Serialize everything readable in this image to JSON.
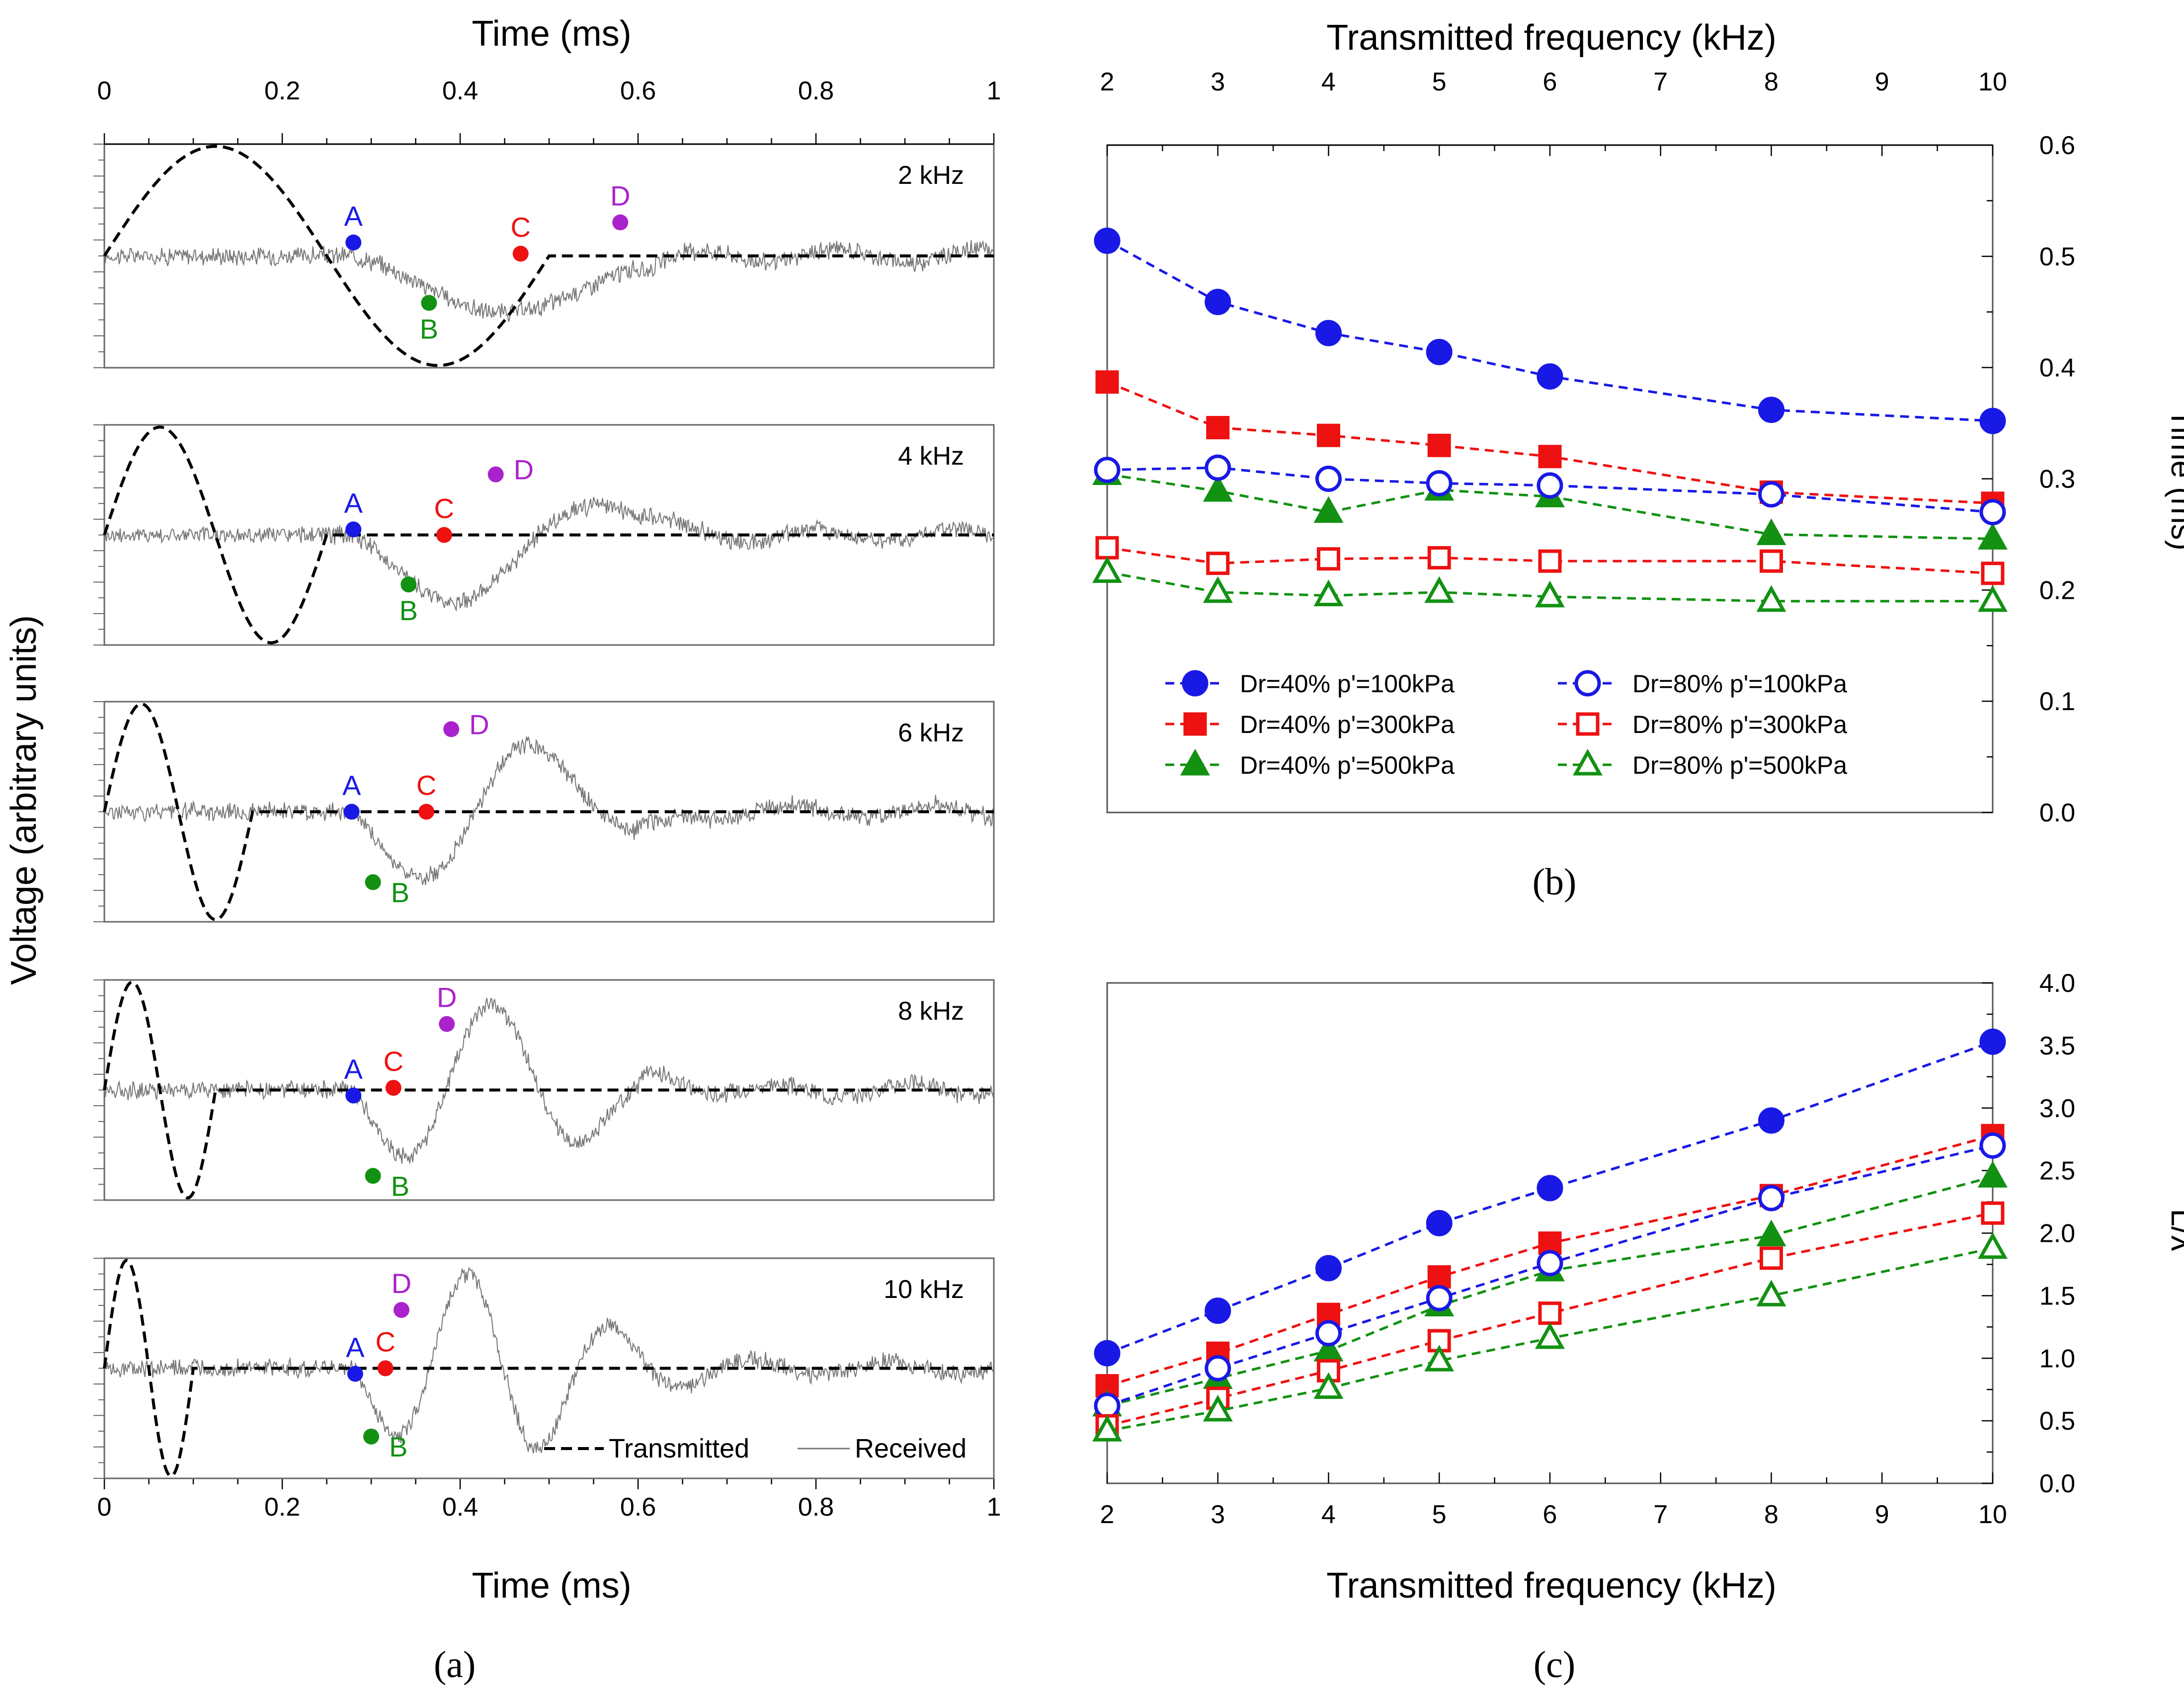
{
  "colors": {
    "blue": "#1919e6",
    "red": "#ee1111",
    "green": "#129112",
    "purple": "#aa22cc",
    "axis": "#555555",
    "text": "#000000"
  },
  "panel_labels": [
    "(a)",
    "(b)",
    "(c)"
  ],
  "chart_data": [
    {
      "id": "a",
      "type": "line",
      "title": "(a)",
      "xlabel": "Time (ms)",
      "xlabel_top": "Time (ms)",
      "ylabel": "Voltage (arbitrary units)",
      "xlim": [
        0,
        1
      ],
      "xticks": [
        "0",
        "0.2",
        "0.4",
        "0.6",
        "0.8",
        "1"
      ],
      "legend": [
        "Transmitted",
        "Received"
      ],
      "subplots": [
        {
          "label": "2 kHz",
          "freq": 2,
          "points": [
            {
              "name": "A",
              "t": 0.28,
              "v": 0.12,
              "color": "blue"
            },
            {
              "name": "B",
              "t": 0.365,
              "v": -0.42,
              "color": "green"
            },
            {
              "name": "C",
              "t": 0.468,
              "v": 0.02,
              "color": "red"
            },
            {
              "name": "D",
              "t": 0.58,
              "v": 0.3,
              "color": "purple"
            }
          ]
        },
        {
          "label": "4 kHz",
          "freq": 4,
          "points": [
            {
              "name": "A",
              "t": 0.28,
              "v": 0.05,
              "color": "blue"
            },
            {
              "name": "B",
              "t": 0.342,
              "v": -0.45,
              "color": "green"
            },
            {
              "name": "C",
              "t": 0.382,
              "v": 0.0,
              "color": "red"
            },
            {
              "name": "D",
              "t": 0.44,
              "v": 0.55,
              "color": "purple"
            }
          ]
        },
        {
          "label": "6 kHz",
          "freq": 6,
          "points": [
            {
              "name": "A",
              "t": 0.278,
              "v": 0.0,
              "color": "blue"
            },
            {
              "name": "B",
              "t": 0.302,
              "v": -0.64,
              "color": "green"
            },
            {
              "name": "C",
              "t": 0.362,
              "v": 0.0,
              "color": "red"
            },
            {
              "name": "D",
              "t": 0.39,
              "v": 0.75,
              "color": "purple"
            }
          ]
        },
        {
          "label": "8 kHz",
          "freq": 8,
          "points": [
            {
              "name": "A",
              "t": 0.28,
              "v": -0.05,
              "color": "blue"
            },
            {
              "name": "B",
              "t": 0.302,
              "v": -0.78,
              "color": "green"
            },
            {
              "name": "C",
              "t": 0.325,
              "v": 0.02,
              "color": "red"
            },
            {
              "name": "D",
              "t": 0.385,
              "v": 0.6,
              "color": "purple"
            }
          ]
        },
        {
          "label": "10 kHz",
          "freq": 10,
          "points": [
            {
              "name": "A",
              "t": 0.282,
              "v": -0.05,
              "color": "blue"
            },
            {
              "name": "B",
              "t": 0.3,
              "v": -0.62,
              "color": "green"
            },
            {
              "name": "C",
              "t": 0.316,
              "v": 0.0,
              "color": "red"
            },
            {
              "name": "D",
              "t": 0.334,
              "v": 0.53,
              "color": "purple"
            }
          ]
        }
      ]
    },
    {
      "id": "b",
      "type": "line",
      "title": "(b)",
      "xlabel": "Transmitted frequency (kHz)",
      "ylabel": "Time (ms)",
      "x": [
        2,
        3,
        4,
        5,
        6,
        8,
        10
      ],
      "xlim": [
        2,
        10
      ],
      "xticks": [
        "2",
        "3",
        "4",
        "5",
        "6",
        "7",
        "8",
        "9",
        "10"
      ],
      "ylim": [
        0,
        0.6
      ],
      "yticks": [
        "0.0",
        "0.1",
        "0.2",
        "0.3",
        "0.4",
        "0.5",
        "0.6"
      ],
      "series": [
        {
          "name": "Dr=40% p'=100kPa",
          "color": "blue",
          "marker": "circle",
          "filled": true,
          "values": [
            0.514,
            0.459,
            0.431,
            0.414,
            0.392,
            0.362,
            0.352
          ]
        },
        {
          "name": "Dr=40% p'=300kPa",
          "color": "red",
          "marker": "square",
          "filled": true,
          "values": [
            0.387,
            0.346,
            0.339,
            0.33,
            0.32,
            0.288,
            0.278
          ]
        },
        {
          "name": "Dr=40% p'=500kPa",
          "color": "green",
          "marker": "triangle",
          "filled": true,
          "values": [
            0.304,
            0.289,
            0.27,
            0.29,
            0.284,
            0.25,
            0.246
          ]
        },
        {
          "name": "Dr=80% p'=100kPa",
          "color": "blue",
          "marker": "circle",
          "filled": false,
          "values": [
            0.308,
            0.31,
            0.3,
            0.296,
            0.294,
            0.286,
            0.27
          ]
        },
        {
          "name": "Dr=80% p'=300kPa",
          "color": "red",
          "marker": "square",
          "filled": false,
          "values": [
            0.238,
            0.224,
            0.228,
            0.229,
            0.226,
            0.226,
            0.215
          ]
        },
        {
          "name": "Dr=80% p'=500kPa",
          "color": "green",
          "marker": "triangle",
          "filled": false,
          "values": [
            0.216,
            0.198,
            0.195,
            0.198,
            0.194,
            0.19,
            0.19
          ]
        }
      ]
    },
    {
      "id": "c",
      "type": "line",
      "title": "(c)",
      "xlabel": "Transmitted frequency (kHz)",
      "ylabel": "L/λ",
      "x": [
        2,
        3,
        4,
        5,
        6,
        8,
        10
      ],
      "xlim": [
        2,
        10
      ],
      "xticks": [
        "2",
        "3",
        "4",
        "5",
        "6",
        "7",
        "8",
        "9",
        "10"
      ],
      "ylim": [
        0,
        4
      ],
      "yticks": [
        "0.0",
        "0.5",
        "1.0",
        "1.5",
        "2.0",
        "2.5",
        "3.0",
        "3.5",
        "4.0"
      ],
      "series": [
        {
          "name": "Dr=40% p'=100kPa",
          "color": "blue",
          "marker": "circle",
          "filled": true,
          "values": [
            1.04,
            1.38,
            1.72,
            2.08,
            2.36,
            2.9,
            3.53
          ]
        },
        {
          "name": "Dr=40% p'=300kPa",
          "color": "red",
          "marker": "square",
          "filled": true,
          "values": [
            0.78,
            1.04,
            1.35,
            1.65,
            1.92,
            2.3,
            2.78
          ]
        },
        {
          "name": "Dr=40% p'=500kPa",
          "color": "green",
          "marker": "triangle",
          "filled": true,
          "values": [
            0.62,
            0.84,
            1.06,
            1.42,
            1.7,
            1.98,
            2.45
          ]
        },
        {
          "name": "Dr=80% p'=100kPa",
          "color": "blue",
          "marker": "circle",
          "filled": false,
          "values": [
            0.62,
            0.92,
            1.2,
            1.48,
            1.76,
            2.28,
            2.7
          ]
        },
        {
          "name": "Dr=80% p'=300kPa",
          "color": "red",
          "marker": "square",
          "filled": false,
          "values": [
            0.46,
            0.68,
            0.9,
            1.14,
            1.36,
            1.8,
            2.16
          ]
        },
        {
          "name": "Dr=80% p'=500kPa",
          "color": "green",
          "marker": "triangle",
          "filled": false,
          "values": [
            0.42,
            0.58,
            0.76,
            0.98,
            1.16,
            1.5,
            1.88
          ]
        }
      ]
    }
  ]
}
